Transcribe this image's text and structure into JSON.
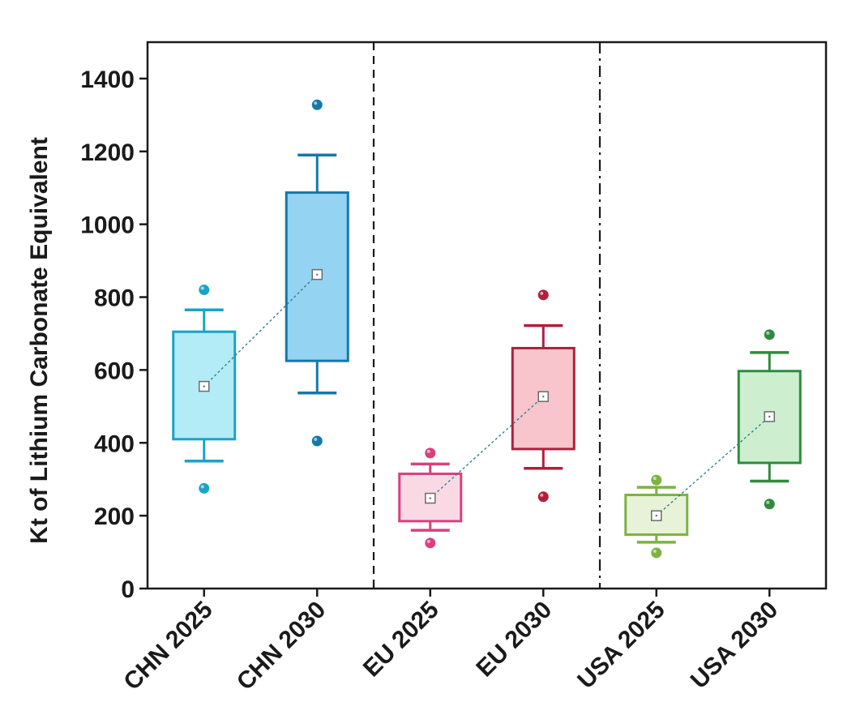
{
  "chart_data": {
    "type": "box",
    "ylabel": "Kt of Lithium Carbonate Equivalent",
    "xlabel": "",
    "ylim": [
      0,
      1500
    ],
    "yticks": [
      0,
      200,
      400,
      600,
      800,
      1000,
      1200,
      1400
    ],
    "grid": false,
    "categories": [
      "CHN 2025",
      "CHN 2030",
      "EU 2025",
      "EU 2030",
      "USA 2025",
      "USA 2030"
    ],
    "boxes": [
      {
        "category": "CHN 2025",
        "whisker_low": 350,
        "q1": 410,
        "mean": 555,
        "q3": 705,
        "whisker_high": 765,
        "outliers": [
          275,
          820
        ],
        "stroke": "#1AA3C7",
        "fill": "#B3ECF7"
      },
      {
        "category": "CHN 2030",
        "whisker_low": 537,
        "q1": 625,
        "mean": 862,
        "q3": 1087,
        "whisker_high": 1190,
        "outliers": [
          405,
          1328
        ],
        "stroke": "#1478A8",
        "fill": "#94D3F2"
      },
      {
        "category": "EU 2025",
        "whisker_low": 160,
        "q1": 185,
        "mean": 248,
        "q3": 315,
        "whisker_high": 342,
        "outliers": [
          125,
          372
        ],
        "stroke": "#D9407F",
        "fill": "#FAD9E5"
      },
      {
        "category": "EU 2030",
        "whisker_low": 330,
        "q1": 383,
        "mean": 527,
        "q3": 660,
        "whisker_high": 722,
        "outliers": [
          252,
          806
        ],
        "stroke": "#B01F3C",
        "fill": "#F7C5CB"
      },
      {
        "category": "USA 2025",
        "whisker_low": 127,
        "q1": 148,
        "mean": 200,
        "q3": 257,
        "whisker_high": 278,
        "outliers": [
          98,
          298
        ],
        "stroke": "#7CB342",
        "fill": "#E8F2D8"
      },
      {
        "category": "USA 2030",
        "whisker_low": 295,
        "q1": 345,
        "mean": 472,
        "q3": 597,
        "whisker_high": 648,
        "outliers": [
          232,
          697
        ],
        "stroke": "#2E8B3E",
        "fill": "#CDEFD0"
      }
    ],
    "mean_lines": [
      [
        0,
        1
      ],
      [
        2,
        3
      ],
      [
        4,
        5
      ]
    ],
    "dividers": [
      {
        "after": 1,
        "style": "dashed"
      },
      {
        "after": 3,
        "style": "dash-dot"
      }
    ]
  }
}
